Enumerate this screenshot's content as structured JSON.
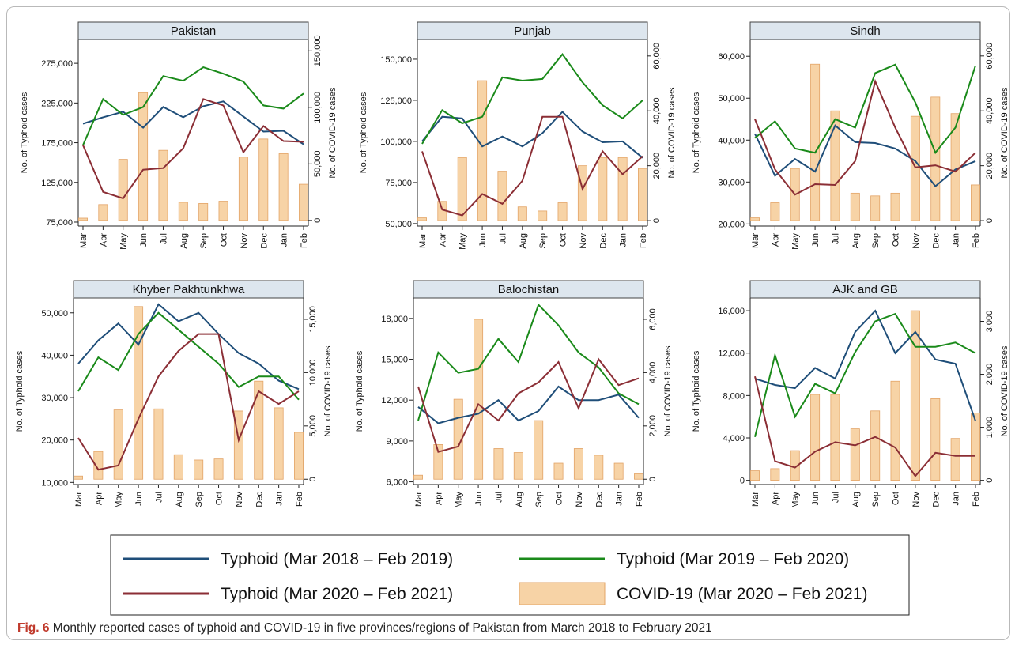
{
  "caption": {
    "label": "Fig. 6",
    "text": "Monthly reported cases of typhoid and COVID-19 in five provinces/regions of Pakistan from March 2018 to February 2021"
  },
  "colors": {
    "typhoid_2018": "#1f4e79",
    "typhoid_2019": "#1a8a1a",
    "typhoid_2020": "#8b2e35",
    "covid_fill": "#f7d3a6",
    "covid_stroke": "#e3a467",
    "strip_fill": "#dde6ee"
  },
  "legend": {
    "entries": [
      {
        "label": "Typhoid (Mar 2018 – Feb 2019)",
        "kind": "line",
        "color": "#1f4e79"
      },
      {
        "label": "Typhoid (Mar 2019 – Feb 2020)",
        "kind": "line",
        "color": "#1a8a1a"
      },
      {
        "label": "Typhoid (Mar 2020 – Feb 2021)",
        "kind": "line",
        "color": "#8b2e35"
      },
      {
        "label": "COVID-19 (Mar 2020 – Feb 2021)",
        "kind": "bar",
        "color": "#f7d3a6"
      }
    ]
  },
  "chart_data": [
    {
      "type": "bar+line",
      "title": "Pakistan",
      "categories": [
        "Mar",
        "Apr",
        "May",
        "Jun",
        "Jul",
        "Aug",
        "Sep",
        "Oct",
        "Nov",
        "Dec",
        "Jan",
        "Feb"
      ],
      "ylabel": "No. of Typhoid cases",
      "y2label": "No. of COVID-19 cases",
      "ylim": [
        70000,
        305000
      ],
      "yticks": [
        75000,
        125000,
        175000,
        225000,
        275000
      ],
      "yticklabels": [
        "75,000",
        "125,000",
        "175,000",
        "225,000",
        "275,000"
      ],
      "y2lim": [
        -5000,
        160000
      ],
      "y2ticks": [
        0,
        50000,
        100000,
        150000
      ],
      "y2ticklabels": [
        "0",
        "50,000",
        "100,000",
        "150,000"
      ],
      "series": [
        {
          "name": "Typhoid (Mar 2018 – Feb 2019)",
          "values": [
            199000,
            207000,
            214000,
            194000,
            220000,
            207000,
            221000,
            227000,
            208000,
            189000,
            190000,
            173000
          ]
        },
        {
          "name": "Typhoid (Mar 2019 – Feb 2020)",
          "values": [
            172000,
            230000,
            210000,
            220000,
            259000,
            253000,
            270000,
            262000,
            252000,
            222000,
            218000,
            237000
          ]
        },
        {
          "name": "Typhoid (Mar 2020 – Feb 2021)",
          "values": [
            172000,
            113000,
            105000,
            141000,
            143000,
            168000,
            230000,
            222000,
            163000,
            196000,
            177000,
            176000
          ]
        },
        {
          "name": "COVID-19 (Mar 2020 – Feb 2021)",
          "values": [
            2000,
            14000,
            54000,
            113000,
            62000,
            16000,
            15000,
            17000,
            56000,
            72000,
            59000,
            32000
          ]
        }
      ]
    },
    {
      "type": "bar+line",
      "title": "Punjab",
      "categories": [
        "Mar",
        "Apr",
        "May",
        "Jun",
        "Jul",
        "Aug",
        "Sep",
        "Oct",
        "Nov",
        "Dec",
        "Jan",
        "Feb"
      ],
      "ylabel": "No. of Typhoid cases",
      "y2label": "No. of COVID-19 cases",
      "ylim": [
        48500,
        162000
      ],
      "yticks": [
        50000,
        75000,
        100000,
        125000,
        150000
      ],
      "yticklabels": [
        "50,000",
        "75,000",
        "100,000",
        "125,000",
        "150,000"
      ],
      "y2lim": [
        -2000,
        66000
      ],
      "y2ticks": [
        0,
        20000,
        40000,
        60000
      ],
      "y2ticklabels": [
        "0",
        "20,000",
        "40,000",
        "60,000"
      ],
      "series": [
        {
          "name": "Typhoid (Mar 2018 – Feb 2019)",
          "values": [
            100000,
            115000,
            114000,
            97000,
            103000,
            97000,
            105000,
            118000,
            106000,
            99500,
            100000,
            90000
          ]
        },
        {
          "name": "Typhoid (Mar 2019 – Feb 2020)",
          "values": [
            98500,
            119000,
            111000,
            115000,
            139000,
            137000,
            138000,
            153000,
            136000,
            122000,
            114000,
            125000
          ]
        },
        {
          "name": "Typhoid (Mar 2020 – Feb 2021)",
          "values": [
            94000,
            58500,
            55000,
            68000,
            62000,
            76000,
            115000,
            115000,
            71000,
            94000,
            80000,
            91000
          ]
        },
        {
          "name": "COVID-19 (Mar 2020 – Feb 2021)",
          "values": [
            1000,
            7000,
            23000,
            51000,
            18000,
            5000,
            3500,
            6500,
            20000,
            23000,
            23000,
            19000
          ]
        }
      ]
    },
    {
      "type": "bar+line",
      "title": "Sindh",
      "categories": [
        "Mar",
        "Apr",
        "May",
        "Jun",
        "Jul",
        "Aug",
        "Sep",
        "Oct",
        "Nov",
        "Dec",
        "Jan",
        "Feb"
      ],
      "ylabel": "No. of Typhoid cases",
      "y2label": "No. of COVID-19 cases",
      "ylim": [
        19500,
        64000
      ],
      "yticks": [
        20000,
        30000,
        40000,
        50000,
        60000
      ],
      "yticklabels": [
        "20,000",
        "30,000",
        "40,000",
        "50,000",
        "60,000"
      ],
      "y2lim": [
        -2000,
        66000
      ],
      "y2ticks": [
        0,
        20000,
        40000,
        60000
      ],
      "y2ticklabels": [
        "0",
        "20,000",
        "40,000",
        "60,000"
      ],
      "series": [
        {
          "name": "Typhoid (Mar 2018 – Feb 2019)",
          "values": [
            41500,
            31500,
            35500,
            32500,
            43500,
            39500,
            39300,
            38000,
            35000,
            29000,
            33000,
            35000
          ]
        },
        {
          "name": "Typhoid (Mar 2019 – Feb 2020)",
          "values": [
            40500,
            44500,
            38000,
            37000,
            45000,
            43000,
            56000,
            58000,
            49000,
            37000,
            43000,
            57800
          ]
        },
        {
          "name": "Typhoid (Mar 2020 – Feb 2021)",
          "values": [
            45000,
            33000,
            27000,
            29500,
            29300,
            35000,
            54000,
            43000,
            33500,
            34000,
            32500,
            37000
          ]
        },
        {
          "name": "COVID-19 (Mar 2020 – Feb 2021)",
          "values": [
            1000,
            6500,
            19000,
            57000,
            40000,
            10000,
            9000,
            10000,
            38000,
            45000,
            39000,
            13000
          ]
        }
      ]
    },
    {
      "type": "bar+line",
      "title": "Khyber Pakhtunkhwa",
      "categories": [
        "Mar",
        "Apr",
        "May",
        "Jun",
        "Jul",
        "Aug",
        "Sep",
        "Oct",
        "Nov",
        "Dec",
        "Jan",
        "Feb"
      ],
      "ylabel": "No. of Typhoid cases",
      "y2label": "No. of COVID-19 cases",
      "ylim": [
        9500,
        53500
      ],
      "yticks": [
        10000,
        20000,
        30000,
        40000,
        50000
      ],
      "yticklabels": [
        "10,000",
        "20,000",
        "30,000",
        "40,000",
        "50,000"
      ],
      "y2lim": [
        -500,
        17000
      ],
      "y2ticks": [
        0,
        5000,
        10000,
        15000
      ],
      "y2ticklabels": [
        "0",
        "5,000",
        "10,000",
        "15,000"
      ],
      "series": [
        {
          "name": "Typhoid (Mar 2018 – Feb 2019)",
          "values": [
            38000,
            43500,
            47500,
            42500,
            52000,
            48000,
            50000,
            45000,
            40500,
            38000,
            34000,
            32000
          ]
        },
        {
          "name": "Typhoid (Mar 2019 – Feb 2020)",
          "values": [
            31500,
            39500,
            36500,
            45000,
            50000,
            46000,
            42000,
            38000,
            32500,
            35000,
            35000,
            29500
          ]
        },
        {
          "name": "Typhoid (Mar 2020 – Feb 2021)",
          "values": [
            20500,
            13000,
            14000,
            25000,
            35000,
            41000,
            45000,
            45000,
            20000,
            31500,
            28500,
            31500
          ]
        },
        {
          "name": "COVID-19 (Mar 2020 – Feb 2021)",
          "values": [
            300,
            2600,
            6500,
            16200,
            6600,
            2300,
            1800,
            1900,
            6400,
            9200,
            6700,
            4400
          ]
        }
      ]
    },
    {
      "type": "bar+line",
      "title": "Balochistan",
      "categories": [
        "Mar",
        "Apr",
        "May",
        "Jun",
        "Jul",
        "Aug",
        "Sep",
        "Oct",
        "Nov",
        "Dec",
        "Jan",
        "Feb"
      ],
      "ylabel": "No. of Typhoid cases",
      "y2label": "No. of COVID-19 cases",
      "ylim": [
        5800,
        19500
      ],
      "yticks": [
        6000,
        9000,
        12000,
        15000,
        18000
      ],
      "yticklabels": [
        "6,000",
        "9,000",
        "12,000",
        "15,000",
        "18,000"
      ],
      "y2lim": [
        -200,
        6800
      ],
      "y2ticks": [
        0,
        2000,
        4000,
        6000
      ],
      "y2ticklabels": [
        "0",
        "2,000",
        "4,000",
        "6,000"
      ],
      "series": [
        {
          "name": "Typhoid (Mar 2018 – Feb 2019)",
          "values": [
            11500,
            10300,
            10700,
            11000,
            12000,
            10500,
            11200,
            13000,
            12000,
            12000,
            12400,
            10700
          ]
        },
        {
          "name": "Typhoid (Mar 2019 – Feb 2020)",
          "values": [
            10500,
            15500,
            14000,
            14300,
            16500,
            14800,
            19000,
            17500,
            15500,
            14400,
            12500,
            11700
          ]
        },
        {
          "name": "Typhoid (Mar 2020 – Feb 2021)",
          "values": [
            13000,
            8200,
            8600,
            11700,
            10500,
            12500,
            13300,
            14800,
            11400,
            15000,
            13100,
            13600
          ]
        },
        {
          "name": "COVID-19 (Mar 2020 – Feb 2021)",
          "values": [
            150,
            1300,
            3000,
            6000,
            1150,
            1000,
            2200,
            600,
            1150,
            900,
            600,
            200
          ]
        }
      ]
    },
    {
      "type": "bar+line",
      "title": "AJK and GB",
      "categories": [
        "Mar",
        "Apr",
        "May",
        "Jun",
        "Jul",
        "Aug",
        "Sep",
        "Oct",
        "Nov",
        "Dec",
        "Jan",
        "Feb"
      ],
      "ylabel": "No. of Typhoid cases",
      "y2label": "No. of COVID-19 cases",
      "ylim": [
        -400,
        17200
      ],
      "yticks": [
        0,
        4000,
        8000,
        12000,
        16000
      ],
      "yticklabels": [
        "0",
        "4,000",
        "8,000",
        "12,000",
        "16,000"
      ],
      "y2lim": [
        -80,
        3440
      ],
      "y2ticks": [
        0,
        1000,
        2000,
        3000
      ],
      "y2ticklabels": [
        "0",
        "1,000",
        "2,000",
        "3,000"
      ],
      "series": [
        {
          "name": "Typhoid (Mar 2018 – Feb 2019)",
          "values": [
            9600,
            9000,
            8700,
            10600,
            9600,
            14000,
            16000,
            12000,
            14000,
            11400,
            11000,
            5600
          ]
        },
        {
          "name": "Typhoid (Mar 2019 – Feb 2020)",
          "values": [
            4100,
            11800,
            6000,
            9100,
            8200,
            12100,
            15000,
            15700,
            12600,
            12600,
            13000,
            12000
          ]
        },
        {
          "name": "Typhoid (Mar 2020 – Feb 2021)",
          "values": [
            9800,
            1800,
            1200,
            2700,
            3600,
            3300,
            4100,
            3100,
            400,
            2600,
            2300,
            2300
          ]
        },
        {
          "name": "COVID-19 (Mar 2020 – Feb 2021)",
          "values": [
            180,
            220,
            560,
            1620,
            1620,
            970,
            1310,
            1870,
            3200,
            1540,
            790,
            1270
          ]
        }
      ]
    }
  ]
}
